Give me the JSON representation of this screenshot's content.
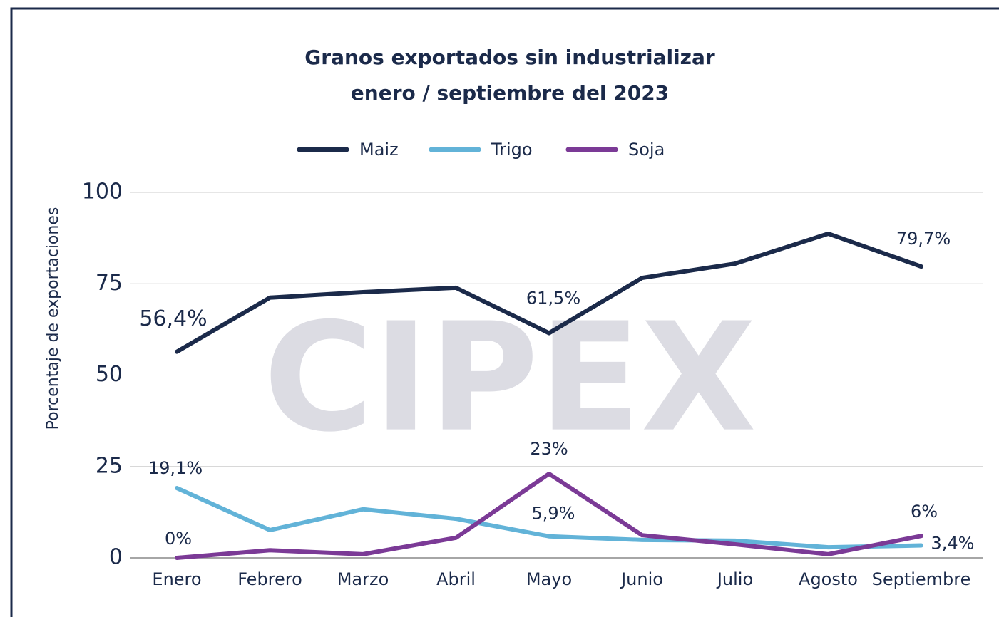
{
  "chart_data": {
    "type": "line",
    "title": "Granos exportados sin industrializar",
    "subtitle": "enero / septiembre del 2023",
    "watermark": "CIPEX",
    "y_label": "Porcentaje de exportaciones",
    "categories": [
      "Enero",
      "Febrero",
      "Marzo",
      "Abril",
      "Mayo",
      "Junio",
      "Julio",
      "Agosto",
      "Septiembre"
    ],
    "series": [
      {
        "name": "Maiz",
        "color": "#1b2a4a",
        "values": [
          56.4,
          71.2,
          72.7,
          73.9,
          61.5,
          76.6,
          80.5,
          88.7,
          79.7
        ],
        "value_labels": [
          "56,4%",
          null,
          null,
          null,
          "61,5%",
          null,
          null,
          null,
          "79,7%"
        ]
      },
      {
        "name": "Trigo",
        "color": "#62b3d8",
        "values": [
          19.1,
          7.6,
          13.3,
          10.7,
          5.9,
          4.9,
          4.7,
          2.9,
          3.4
        ],
        "value_labels": [
          "19,1%",
          null,
          null,
          null,
          "5,9%",
          null,
          null,
          null,
          "3,4%"
        ]
      },
      {
        "name": "Soja",
        "color": "#7b3a96",
        "values": [
          0,
          2.1,
          1.0,
          5.5,
          23,
          6.2,
          3.7,
          1.0,
          6
        ],
        "value_labels": [
          "0%",
          null,
          null,
          null,
          "23%",
          null,
          null,
          null,
          "6%"
        ]
      }
    ],
    "ylim": [
      0,
      100
    ],
    "yticks": [
      0,
      25,
      50,
      75,
      100
    ],
    "grid": true,
    "legend": "top"
  }
}
